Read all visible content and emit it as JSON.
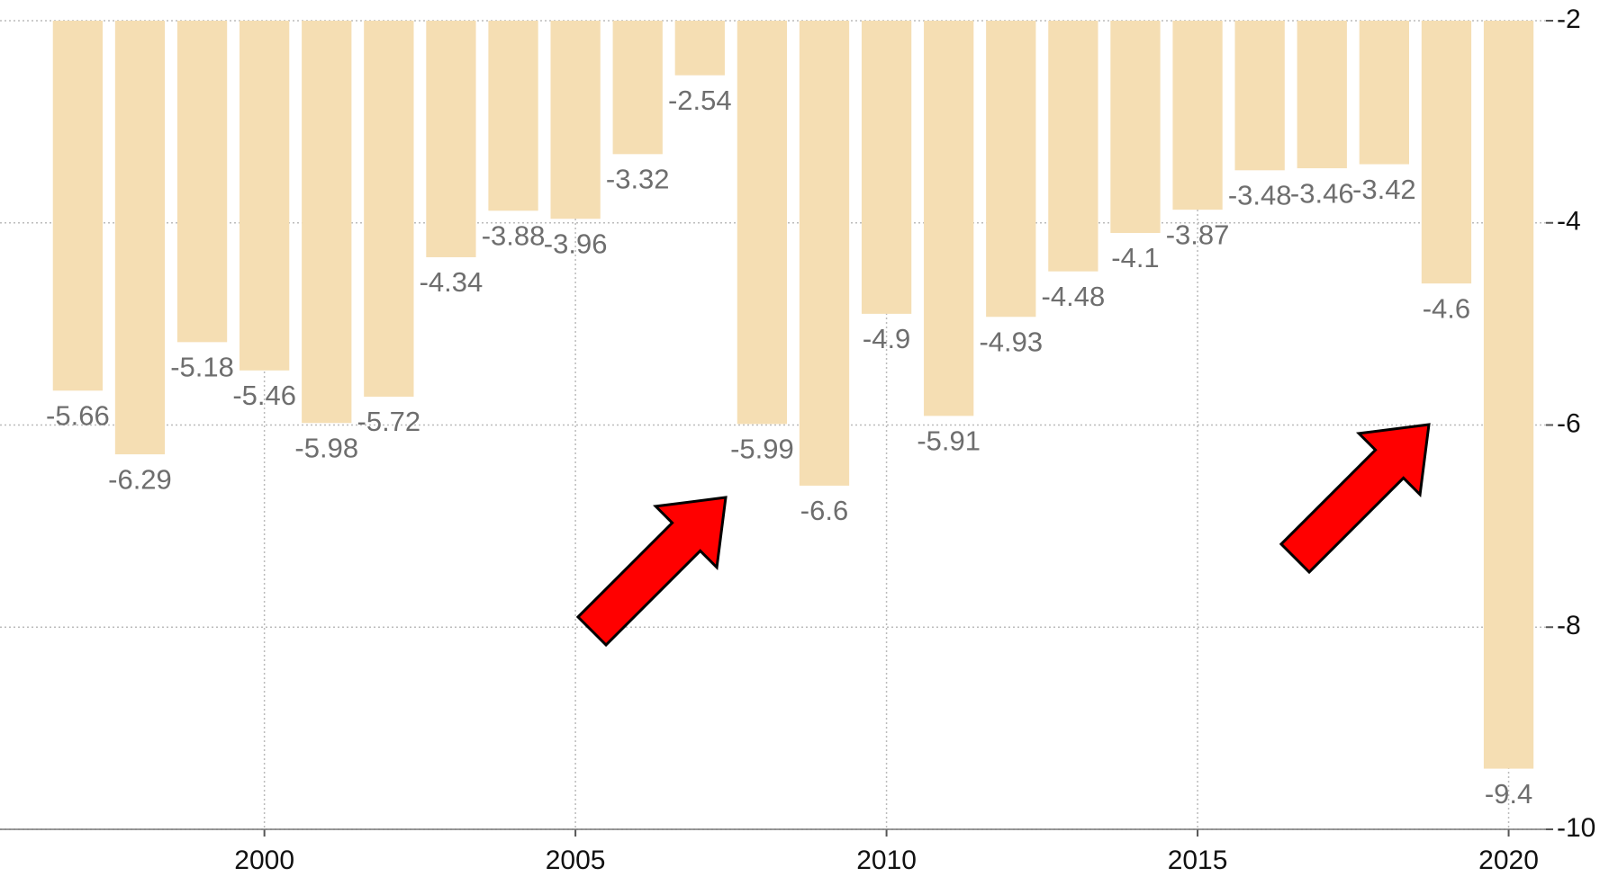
{
  "chart_data": {
    "type": "bar",
    "x": [
      1997,
      1998,
      1999,
      2000,
      2001,
      2002,
      2003,
      2004,
      2005,
      2006,
      2007,
      2008,
      2009,
      2010,
      2011,
      2012,
      2013,
      2014,
      2015,
      2016,
      2017,
      2018,
      2019,
      2020
    ],
    "values": [
      -5.66,
      -6.29,
      -5.18,
      -5.46,
      -5.98,
      -5.72,
      -4.34,
      -3.88,
      -3.96,
      -3.32,
      -2.54,
      -5.99,
      -6.6,
      -4.9,
      -5.91,
      -4.93,
      -4.48,
      -4.1,
      -3.87,
      -3.48,
      -3.46,
      -3.42,
      -4.6,
      -9.4
    ],
    "color": "#f5deb3",
    "xlim": [
      1995.75,
      2020.6
    ],
    "xticks": [
      2000,
      2005,
      2010,
      2015,
      2020
    ],
    "ylim": [
      -10,
      -2
    ],
    "yticks": [
      -2,
      -4,
      -6,
      -8,
      -10
    ],
    "grid": true
  }
}
